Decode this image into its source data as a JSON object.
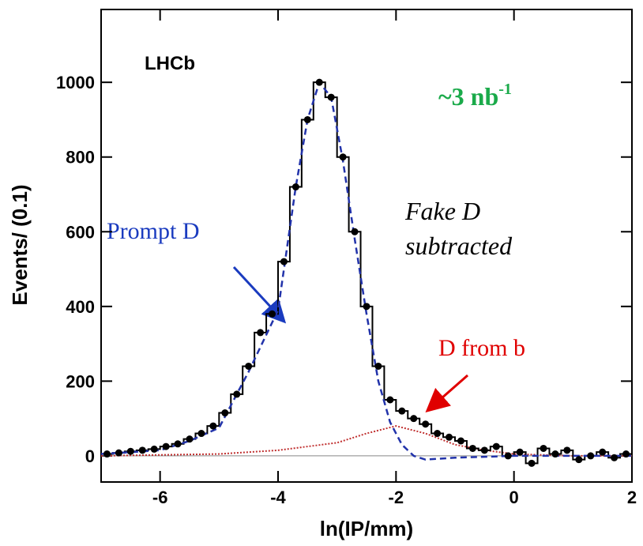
{
  "chart_data": {
    "type": "scatter",
    "experiment_label": "LHCb",
    "luminosity_label": "~3 nb",
    "luminosity_exponent": "-1",
    "note_line1": "Fake D",
    "note_line2": "subtracted",
    "prompt_label": "Prompt D",
    "b_label": "D from b",
    "x_label": "ln(IP/mm)",
    "y_label": "Events/ (0.1)",
    "xlim": [
      -7,
      2
    ],
    "ylim": [
      -70,
      1195
    ],
    "xticks": [
      -6,
      -4,
      -2,
      0,
      2
    ],
    "yticks": [
      0,
      200,
      400,
      600,
      800,
      1000
    ],
    "data": {
      "color": "#000000",
      "x": [
        -6.9,
        -6.7,
        -6.5,
        -6.3,
        -6.1,
        -5.9,
        -5.7,
        -5.5,
        -5.3,
        -5.1,
        -4.9,
        -4.7,
        -4.5,
        -4.3,
        -4.1,
        -3.9,
        -3.7,
        -3.5,
        -3.3,
        -3.1,
        -2.9,
        -2.7,
        -2.5,
        -2.3,
        -2.1,
        -1.9,
        -1.7,
        -1.5,
        -1.3,
        -1.1,
        -0.9,
        -0.7,
        -0.5,
        -0.3,
        -0.1,
        0.1,
        0.3,
        0.5,
        0.7,
        0.9,
        1.1,
        1.3,
        1.5,
        1.7,
        1.9
      ],
      "values": [
        5,
        8,
        12,
        15,
        18,
        25,
        32,
        45,
        60,
        80,
        115,
        165,
        240,
        330,
        380,
        520,
        720,
        900,
        1000,
        960,
        800,
        600,
        400,
        240,
        150,
        120,
        100,
        85,
        60,
        50,
        40,
        20,
        15,
        25,
        0,
        10,
        -20,
        20,
        5,
        15,
        -10,
        0,
        10,
        -5,
        5
      ]
    },
    "fits": [
      {
        "name": "Prompt D",
        "color": "#2233aa",
        "x": [
          -7,
          -6,
          -5.5,
          -5,
          -4.5,
          -4,
          -3.7,
          -3.5,
          -3.3,
          -3.1,
          -2.9,
          -2.7,
          -2.5,
          -2.3,
          -2.1,
          -1.9,
          -1.7,
          -1.5,
          -1,
          0,
          2
        ],
        "values": [
          5,
          15,
          40,
          75,
          225,
          390,
          720,
          900,
          1000,
          960,
          790,
          580,
          380,
          200,
          90,
          30,
          0,
          -10,
          -5,
          0,
          0
        ]
      },
      {
        "name": "D from b",
        "color": "#c03030",
        "x": [
          -7,
          -5,
          -4,
          -3,
          -2.5,
          -2,
          -1.5,
          -1,
          -0.5,
          0,
          1,
          2
        ],
        "values": [
          0,
          5,
          15,
          35,
          60,
          80,
          60,
          30,
          15,
          5,
          0,
          0
        ]
      }
    ]
  }
}
